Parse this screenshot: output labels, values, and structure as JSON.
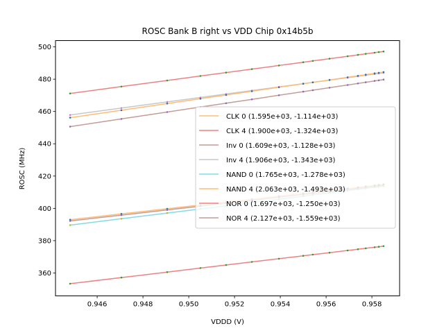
{
  "chart_data": {
    "type": "line",
    "title": "ROSC Bank B right vs VDD Chip 0x14b5b",
    "xlabel": "VDDD (V)",
    "ylabel": "ROSC (MHz)",
    "xlim": [
      0.94418,
      0.95921
    ],
    "ylim": [
      345.8,
      503.9
    ],
    "xticks": [
      0.946,
      0.948,
      0.95,
      0.952,
      0.954,
      0.956,
      0.958
    ],
    "xtick_labels": [
      "0.946",
      "0.948",
      "0.950",
      "0.952",
      "0.954",
      "0.956",
      "0.958"
    ],
    "yticks": [
      360,
      380,
      400,
      420,
      440,
      460,
      480,
      500
    ],
    "ytick_labels": [
      "360",
      "380",
      "400",
      "420",
      "440",
      "460",
      "480",
      "500"
    ],
    "grid": false,
    "legend_position": "center-right",
    "x": [
      0.94482,
      0.94706,
      0.94906,
      0.95051,
      0.95163,
      0.95276,
      0.95394,
      0.955,
      0.95542,
      0.95615,
      0.95694,
      0.95739,
      0.95773,
      0.95812,
      0.9583,
      0.95851
    ],
    "series": [
      {
        "name": "CLK 0",
        "label": "CLK 0 (1.595e+03, -1.114e+03)",
        "slope": 1595,
        "intercept": -1114,
        "color": "#ffbb78",
        "marker_color": "#1f77b4"
      },
      {
        "name": "CLK 4",
        "label": "CLK 4 (1.900e+03, -1.324e+03)",
        "slope": 1900,
        "intercept": -1324,
        "color": "#f08080",
        "marker_color": "#2ca02c"
      },
      {
        "name": "Inv 0",
        "label": "Inv 0 (1.609e+03, -1.128e+03)",
        "slope": 1609,
        "intercept": -1128,
        "color": "#c49c94",
        "marker_color": "#9467bd"
      },
      {
        "name": "Inv 4",
        "label": "Inv 4 (1.906e+03, -1.343e+03)",
        "slope": 1906,
        "intercept": -1343,
        "color": "#c7c7c7",
        "marker_color": "#e377c2"
      },
      {
        "name": "NAND 0",
        "label": "NAND 0 (1.765e+03, -1.278e+03)",
        "slope": 1765,
        "intercept": -1278,
        "color": "#80dbe6",
        "marker_color": "#bcbd22"
      },
      {
        "name": "NAND 4",
        "label": "NAND 4 (2.063e+03, -1.493e+03)",
        "slope": 2063,
        "intercept": -1493,
        "color": "#ffbb78",
        "marker_color": "#1f77b4"
      },
      {
        "name": "NOR 0",
        "label": "NOR 0 (1.697e+03, -1.250e+03)",
        "slope": 1697,
        "intercept": -1250,
        "color": "#f08080",
        "marker_color": "#2ca02c"
      },
      {
        "name": "NOR 4",
        "label": "NOR 4 (2.127e+03, -1.559e+03)",
        "slope": 2127,
        "intercept": -1559,
        "color": "#c49c94",
        "marker_color": "#9467bd"
      }
    ]
  }
}
